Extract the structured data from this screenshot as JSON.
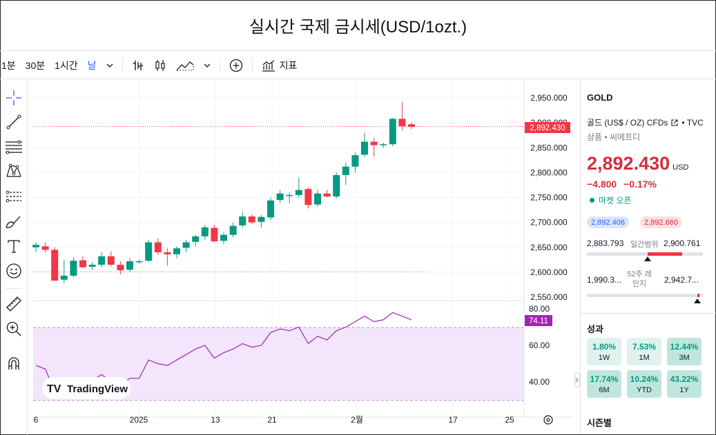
{
  "title": "실시간 국제 금시세(USD/1ozt.)",
  "toolbar": {
    "intervals": [
      "1분",
      "30분",
      "1시간",
      "날"
    ],
    "active_interval": "날",
    "indicators_label": "지표",
    "icons": [
      "chevron-down-icon",
      "bar-style-icon",
      "candle-style-icon",
      "area-style-icon",
      "chevron-down-icon",
      "plus-circle-icon",
      "indicators-icon"
    ]
  },
  "left_tools": [
    "crosshair-icon",
    "trendline-icon",
    "fib-icon",
    "pattern-icon",
    "forecast-icon",
    "brush-icon",
    "text-icon",
    "emoji-icon",
    "ruler-icon",
    "zoom-in-icon",
    "magnet-icon"
  ],
  "colors": {
    "up": "#089981",
    "down": "#f23645",
    "accent": "#2962ff",
    "rsi": "#9c27b0",
    "rsi_band": "#f3e5fb"
  },
  "price_axis": {
    "ticks": [
      "2,950.000",
      "2,900.000",
      "2,850.000",
      "2,800.000",
      "2,750.000",
      "2,700.000",
      "2,650.000",
      "2,600.000",
      "2,550.000"
    ],
    "current_label": "2,892.430"
  },
  "rsi_axis": {
    "ticks": [
      "80.00",
      "60.00",
      "40.00"
    ],
    "current_label": "74.11"
  },
  "time_axis": {
    "ticks": [
      "6",
      "2025",
      "13",
      "21",
      "2월",
      "17",
      "25"
    ]
  },
  "watermark": "TradingView",
  "chart_data": {
    "type": "candlestick",
    "price_range": [
      2535,
      2960
    ],
    "candles": [
      {
        "o": 2650,
        "h": 2660,
        "l": 2640,
        "c": 2655
      },
      {
        "o": 2652,
        "h": 2660,
        "l": 2640,
        "c": 2645
      },
      {
        "o": 2645,
        "h": 2650,
        "l": 2585,
        "c": 2583
      },
      {
        "o": 2585,
        "h": 2625,
        "l": 2578,
        "c": 2593
      },
      {
        "o": 2593,
        "h": 2630,
        "l": 2590,
        "c": 2623
      },
      {
        "o": 2624,
        "h": 2632,
        "l": 2608,
        "c": 2610
      },
      {
        "o": 2611,
        "h": 2620,
        "l": 2605,
        "c": 2615
      },
      {
        "o": 2615,
        "h": 2640,
        "l": 2610,
        "c": 2632
      },
      {
        "o": 2632,
        "h": 2642,
        "l": 2612,
        "c": 2615
      },
      {
        "o": 2615,
        "h": 2622,
        "l": 2596,
        "c": 2604
      },
      {
        "o": 2605,
        "h": 2628,
        "l": 2600,
        "c": 2622
      },
      {
        "o": 2622,
        "h": 2625,
        "l": 2617,
        "c": 2622
      },
      {
        "o": 2623,
        "h": 2665,
        "l": 2620,
        "c": 2660
      },
      {
        "o": 2660,
        "h": 2668,
        "l": 2635,
        "c": 2640
      },
      {
        "o": 2640,
        "h": 2648,
        "l": 2613,
        "c": 2636
      },
      {
        "o": 2636,
        "h": 2652,
        "l": 2628,
        "c": 2648
      },
      {
        "o": 2649,
        "h": 2665,
        "l": 2640,
        "c": 2660
      },
      {
        "o": 2661,
        "h": 2675,
        "l": 2652,
        "c": 2672
      },
      {
        "o": 2672,
        "h": 2695,
        "l": 2665,
        "c": 2690
      },
      {
        "o": 2689,
        "h": 2695,
        "l": 2660,
        "c": 2662
      },
      {
        "o": 2663,
        "h": 2680,
        "l": 2656,
        "c": 2675
      },
      {
        "o": 2675,
        "h": 2700,
        "l": 2670,
        "c": 2693
      },
      {
        "o": 2694,
        "h": 2722,
        "l": 2690,
        "c": 2712
      },
      {
        "o": 2712,
        "h": 2716,
        "l": 2697,
        "c": 2700
      },
      {
        "o": 2701,
        "h": 2715,
        "l": 2690,
        "c": 2711
      },
      {
        "o": 2710,
        "h": 2750,
        "l": 2705,
        "c": 2744
      },
      {
        "o": 2745,
        "h": 2765,
        "l": 2740,
        "c": 2758
      },
      {
        "o": 2755,
        "h": 2760,
        "l": 2738,
        "c": 2755
      },
      {
        "o": 2755,
        "h": 2790,
        "l": 2750,
        "c": 2765
      },
      {
        "o": 2767,
        "h": 2770,
        "l": 2728,
        "c": 2735
      },
      {
        "o": 2736,
        "h": 2765,
        "l": 2732,
        "c": 2758
      },
      {
        "o": 2758,
        "h": 2765,
        "l": 2750,
        "c": 2752
      },
      {
        "o": 2752,
        "h": 2800,
        "l": 2748,
        "c": 2795
      },
      {
        "o": 2795,
        "h": 2820,
        "l": 2775,
        "c": 2812
      },
      {
        "o": 2812,
        "h": 2840,
        "l": 2800,
        "c": 2835
      },
      {
        "o": 2836,
        "h": 2880,
        "l": 2832,
        "c": 2862
      },
      {
        "o": 2862,
        "h": 2870,
        "l": 2832,
        "c": 2855
      },
      {
        "o": 2855,
        "h": 2860,
        "l": 2850,
        "c": 2857
      },
      {
        "o": 2857,
        "h": 2910,
        "l": 2853,
        "c": 2908
      },
      {
        "o": 2908,
        "h": 2942,
        "l": 2885,
        "c": 2893
      },
      {
        "o": 2897,
        "h": 2900,
        "l": 2887,
        "c": 2892
      }
    ],
    "rsi": [
      49,
      47,
      35,
      38,
      42,
      40,
      41,
      44,
      40,
      38,
      42,
      42,
      52,
      50,
      49,
      52,
      55,
      58,
      60,
      53,
      56,
      58,
      61,
      59,
      60,
      67,
      69,
      68,
      70,
      61,
      65,
      63,
      68,
      70,
      73,
      76,
      73,
      74,
      78,
      76,
      74
    ],
    "rsi_range": [
      28,
      84
    ],
    "current_price": 2892.43,
    "dotted_level": 2601
  },
  "panel": {
    "symbol": "GOLD",
    "name": "골드 (US$ / OZ) CFDs",
    "source": "• TVC",
    "category": "상품 • 씨에프디",
    "price": "2,892.430",
    "currency": "USD",
    "change": "−4.800",
    "change_pct": "−0.17%",
    "market_status": "마켓 오픈",
    "bid": "2,892.406",
    "ask": "2,892.660",
    "day_low": "2,883.793",
    "day_range_label": "일간범위",
    "day_high": "2,900.761",
    "week_low": "1,990.3...",
    "week_range_label": "52주 레인지",
    "week_high": "2,942.7...",
    "performance_title": "성과",
    "performance": [
      {
        "value": "1.80%",
        "label": "1W"
      },
      {
        "value": "7.53%",
        "label": "1M"
      },
      {
        "value": "12.44%",
        "label": "3M"
      },
      {
        "value": "17.74%",
        "label": "6M"
      },
      {
        "value": "10.24%",
        "label": "YTD"
      },
      {
        "value": "43.22%",
        "label": "1Y"
      }
    ],
    "seasonal_title": "시즌별"
  }
}
